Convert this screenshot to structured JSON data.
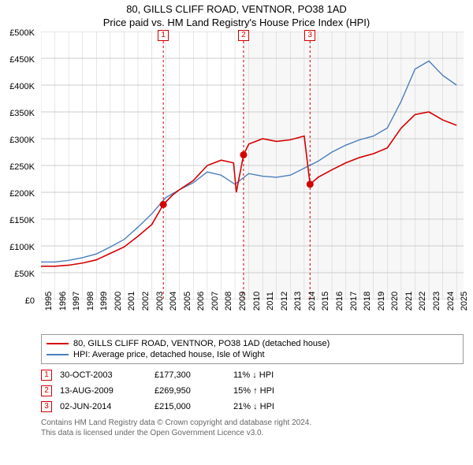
{
  "title": {
    "line1": "80, GILLS CLIFF ROAD, VENTNOR, PO38 1AD",
    "line2": "Price paid vs. HM Land Registry's House Price Index (HPI)",
    "fontsize": 13,
    "color": "#000000"
  },
  "chart": {
    "type": "line",
    "background_color": "#ffffff",
    "grid_color": "#cccccc",
    "shaded_region": {
      "x_start": 2009.6,
      "x_end": 2025.5,
      "fill": "#f7f7f7"
    },
    "xlim": [
      1995,
      2025.5
    ],
    "ylim": [
      0,
      500000
    ],
    "ytick_step": 50000,
    "y_ticks": [
      {
        "v": 0,
        "label": "£0"
      },
      {
        "v": 50000,
        "label": "£50K"
      },
      {
        "v": 100000,
        "label": "£100K"
      },
      {
        "v": 150000,
        "label": "£150K"
      },
      {
        "v": 200000,
        "label": "£200K"
      },
      {
        "v": 250000,
        "label": "£250K"
      },
      {
        "v": 300000,
        "label": "£300K"
      },
      {
        "v": 350000,
        "label": "£350K"
      },
      {
        "v": 400000,
        "label": "£400K"
      },
      {
        "v": 450000,
        "label": "£450K"
      },
      {
        "v": 500000,
        "label": "£500K"
      }
    ],
    "x_ticks": [
      1995,
      1996,
      1997,
      1998,
      1999,
      2000,
      2001,
      2002,
      2003,
      2004,
      2005,
      2006,
      2007,
      2008,
      2009,
      2010,
      2011,
      2012,
      2013,
      2014,
      2015,
      2016,
      2017,
      2018,
      2019,
      2020,
      2021,
      2022,
      2023,
      2024,
      2025
    ],
    "series": [
      {
        "name": "HPI: Average price, detached house, Isle of Wight",
        "color": "#4a7ebb",
        "width": 1.4,
        "data": [
          [
            1995,
            70000
          ],
          [
            1996,
            70000
          ],
          [
            1997,
            73000
          ],
          [
            1998,
            78000
          ],
          [
            1999,
            85000
          ],
          [
            2000,
            98000
          ],
          [
            2001,
            112000
          ],
          [
            2002,
            135000
          ],
          [
            2003,
            160000
          ],
          [
            2004,
            190000
          ],
          [
            2005,
            205000
          ],
          [
            2006,
            218000
          ],
          [
            2007,
            238000
          ],
          [
            2008,
            232000
          ],
          [
            2009,
            215000
          ],
          [
            2010,
            235000
          ],
          [
            2011,
            230000
          ],
          [
            2012,
            228000
          ],
          [
            2013,
            232000
          ],
          [
            2014,
            245000
          ],
          [
            2015,
            258000
          ],
          [
            2016,
            275000
          ],
          [
            2017,
            288000
          ],
          [
            2018,
            298000
          ],
          [
            2019,
            305000
          ],
          [
            2020,
            320000
          ],
          [
            2021,
            370000
          ],
          [
            2022,
            430000
          ],
          [
            2023,
            445000
          ],
          [
            2024,
            418000
          ],
          [
            2025,
            400000
          ]
        ]
      },
      {
        "name": "80, GILLS CLIFF ROAD, VENTNOR, PO38 1AD (detached house)",
        "color": "#d40000",
        "width": 1.6,
        "data": [
          [
            1995,
            62000
          ],
          [
            1996,
            62000
          ],
          [
            1997,
            64000
          ],
          [
            1998,
            68000
          ],
          [
            1999,
            74000
          ],
          [
            2000,
            86000
          ],
          [
            2001,
            98000
          ],
          [
            2002,
            118000
          ],
          [
            2003,
            140000
          ],
          [
            2003.83,
            177300
          ],
          [
            2004.5,
            195000
          ],
          [
            2005,
            205000
          ],
          [
            2006,
            222000
          ],
          [
            2007,
            250000
          ],
          [
            2008,
            260000
          ],
          [
            2008.9,
            255000
          ],
          [
            2009.1,
            200000
          ],
          [
            2009.62,
            269950
          ],
          [
            2010,
            290000
          ],
          [
            2011,
            300000
          ],
          [
            2012,
            295000
          ],
          [
            2013,
            298000
          ],
          [
            2014,
            305000
          ],
          [
            2014.42,
            215000
          ],
          [
            2015,
            228000
          ],
          [
            2016,
            242000
          ],
          [
            2017,
            255000
          ],
          [
            2018,
            265000
          ],
          [
            2019,
            272000
          ],
          [
            2020,
            283000
          ],
          [
            2021,
            320000
          ],
          [
            2022,
            345000
          ],
          [
            2023,
            350000
          ],
          [
            2024,
            335000
          ],
          [
            2025,
            325000
          ]
        ]
      }
    ],
    "sale_points": [
      {
        "x": 2003.83,
        "y": 177300,
        "color": "#d40000"
      },
      {
        "x": 2009.62,
        "y": 269950,
        "color": "#d40000"
      },
      {
        "x": 2014.42,
        "y": 215000,
        "color": "#d40000"
      }
    ],
    "markers": [
      {
        "num": "1",
        "x": 2003.83,
        "color": "#d40000"
      },
      {
        "num": "2",
        "x": 2009.62,
        "color": "#d40000"
      },
      {
        "num": "3",
        "x": 2014.42,
        "color": "#d40000"
      }
    ],
    "marker_line_color": "#d40000",
    "marker_line_dash": "3,3"
  },
  "legend": {
    "border_color": "#999999",
    "items": [
      {
        "label": "80, GILLS CLIFF ROAD, VENTNOR, PO38 1AD (detached house)",
        "color": "#d40000"
      },
      {
        "label": "HPI: Average price, detached house, Isle of Wight",
        "color": "#4a7ebb"
      }
    ]
  },
  "sales": [
    {
      "num": "1",
      "date": "30-OCT-2003",
      "price": "£177,300",
      "diff": "11% ↓ HPI",
      "color": "#d40000"
    },
    {
      "num": "2",
      "date": "13-AUG-2009",
      "price": "£269,950",
      "diff": "15% ↑ HPI",
      "color": "#d40000"
    },
    {
      "num": "3",
      "date": "02-JUN-2014",
      "price": "£215,000",
      "diff": "21% ↓ HPI",
      "color": "#d40000"
    }
  ],
  "footer": {
    "line1": "Contains HM Land Registry data © Crown copyright and database right 2024.",
    "line2": "This data is licensed under the Open Government Licence v3.0.",
    "color": "#666666"
  }
}
